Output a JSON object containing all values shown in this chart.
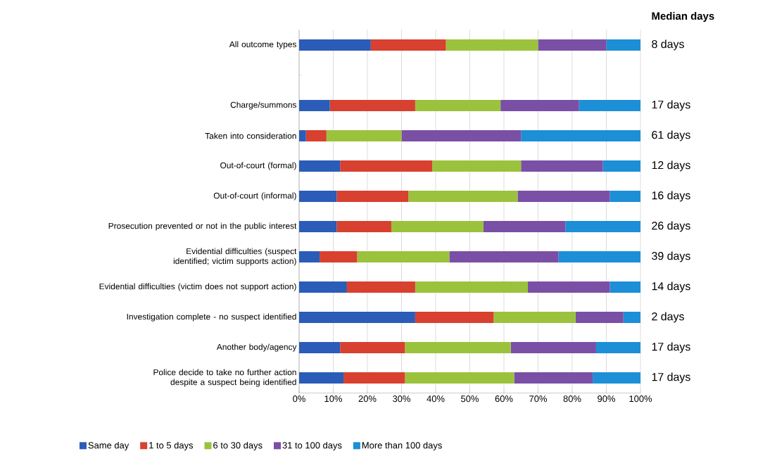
{
  "chart_data": {
    "type": "bar",
    "orientation": "horizontal",
    "stacked": true,
    "categories": [
      "All outcome types",
      null,
      "Charge/summons",
      "Taken into consideration",
      "Out-of-court (formal)",
      "Out-of-court (informal)",
      "Prosecution prevented or not in the public interest",
      "Evidential difficulties (suspect identified; victim supports action)",
      "Evidential difficulties (victim does not support action)",
      "Investigation complete - no suspect identified",
      "Another body/agency",
      "Police decide to take no further action despite a suspect being identified"
    ],
    "series": [
      {
        "name": "Same day",
        "color": "#2a5cb8",
        "values": [
          21,
          null,
          9,
          2,
          12,
          11,
          11,
          6,
          14,
          34,
          12,
          13
        ]
      },
      {
        "name": "1 to 5 days",
        "color": "#d8402f",
        "values": [
          22,
          null,
          25,
          6,
          27,
          21,
          16,
          11,
          20,
          23,
          19,
          18
        ]
      },
      {
        "name": "6 to 30 days",
        "color": "#9bc23c",
        "values": [
          27,
          null,
          25,
          22,
          26,
          32,
          27,
          27,
          33,
          24,
          31,
          32
        ]
      },
      {
        "name": "31 to 100 days",
        "color": "#7a4fa6",
        "values": [
          20,
          null,
          23,
          35,
          24,
          27,
          24,
          32,
          24,
          14,
          25,
          23
        ]
      },
      {
        "name": "More than 100 days",
        "color": "#1c8fd6",
        "values": [
          10,
          null,
          18,
          35,
          11,
          9,
          22,
          24,
          9,
          5,
          13,
          14
        ]
      }
    ],
    "xlim": [
      0,
      100
    ],
    "xticks": [
      {
        "value": 0,
        "label": "0%"
      },
      {
        "value": 10,
        "label": "10%"
      },
      {
        "value": 20,
        "label": "20%"
      },
      {
        "value": 30,
        "label": "30%"
      },
      {
        "value": 40,
        "label": "40%"
      },
      {
        "value": 50,
        "label": "50%"
      },
      {
        "value": 60,
        "label": "60%"
      },
      {
        "value": 70,
        "label": "70%"
      },
      {
        "value": 80,
        "label": "80%"
      },
      {
        "value": 90,
        "label": "90%"
      },
      {
        "value": 100,
        "label": "100%"
      }
    ],
    "grid": "x",
    "legend": "bottom",
    "annotations": [
      "Median days",
      "8 days",
      "17 days",
      "61 days",
      "12 days",
      "16 days",
      "26 days",
      "39 days",
      "14 days",
      "2 days",
      "17 days",
      "17 days"
    ]
  }
}
